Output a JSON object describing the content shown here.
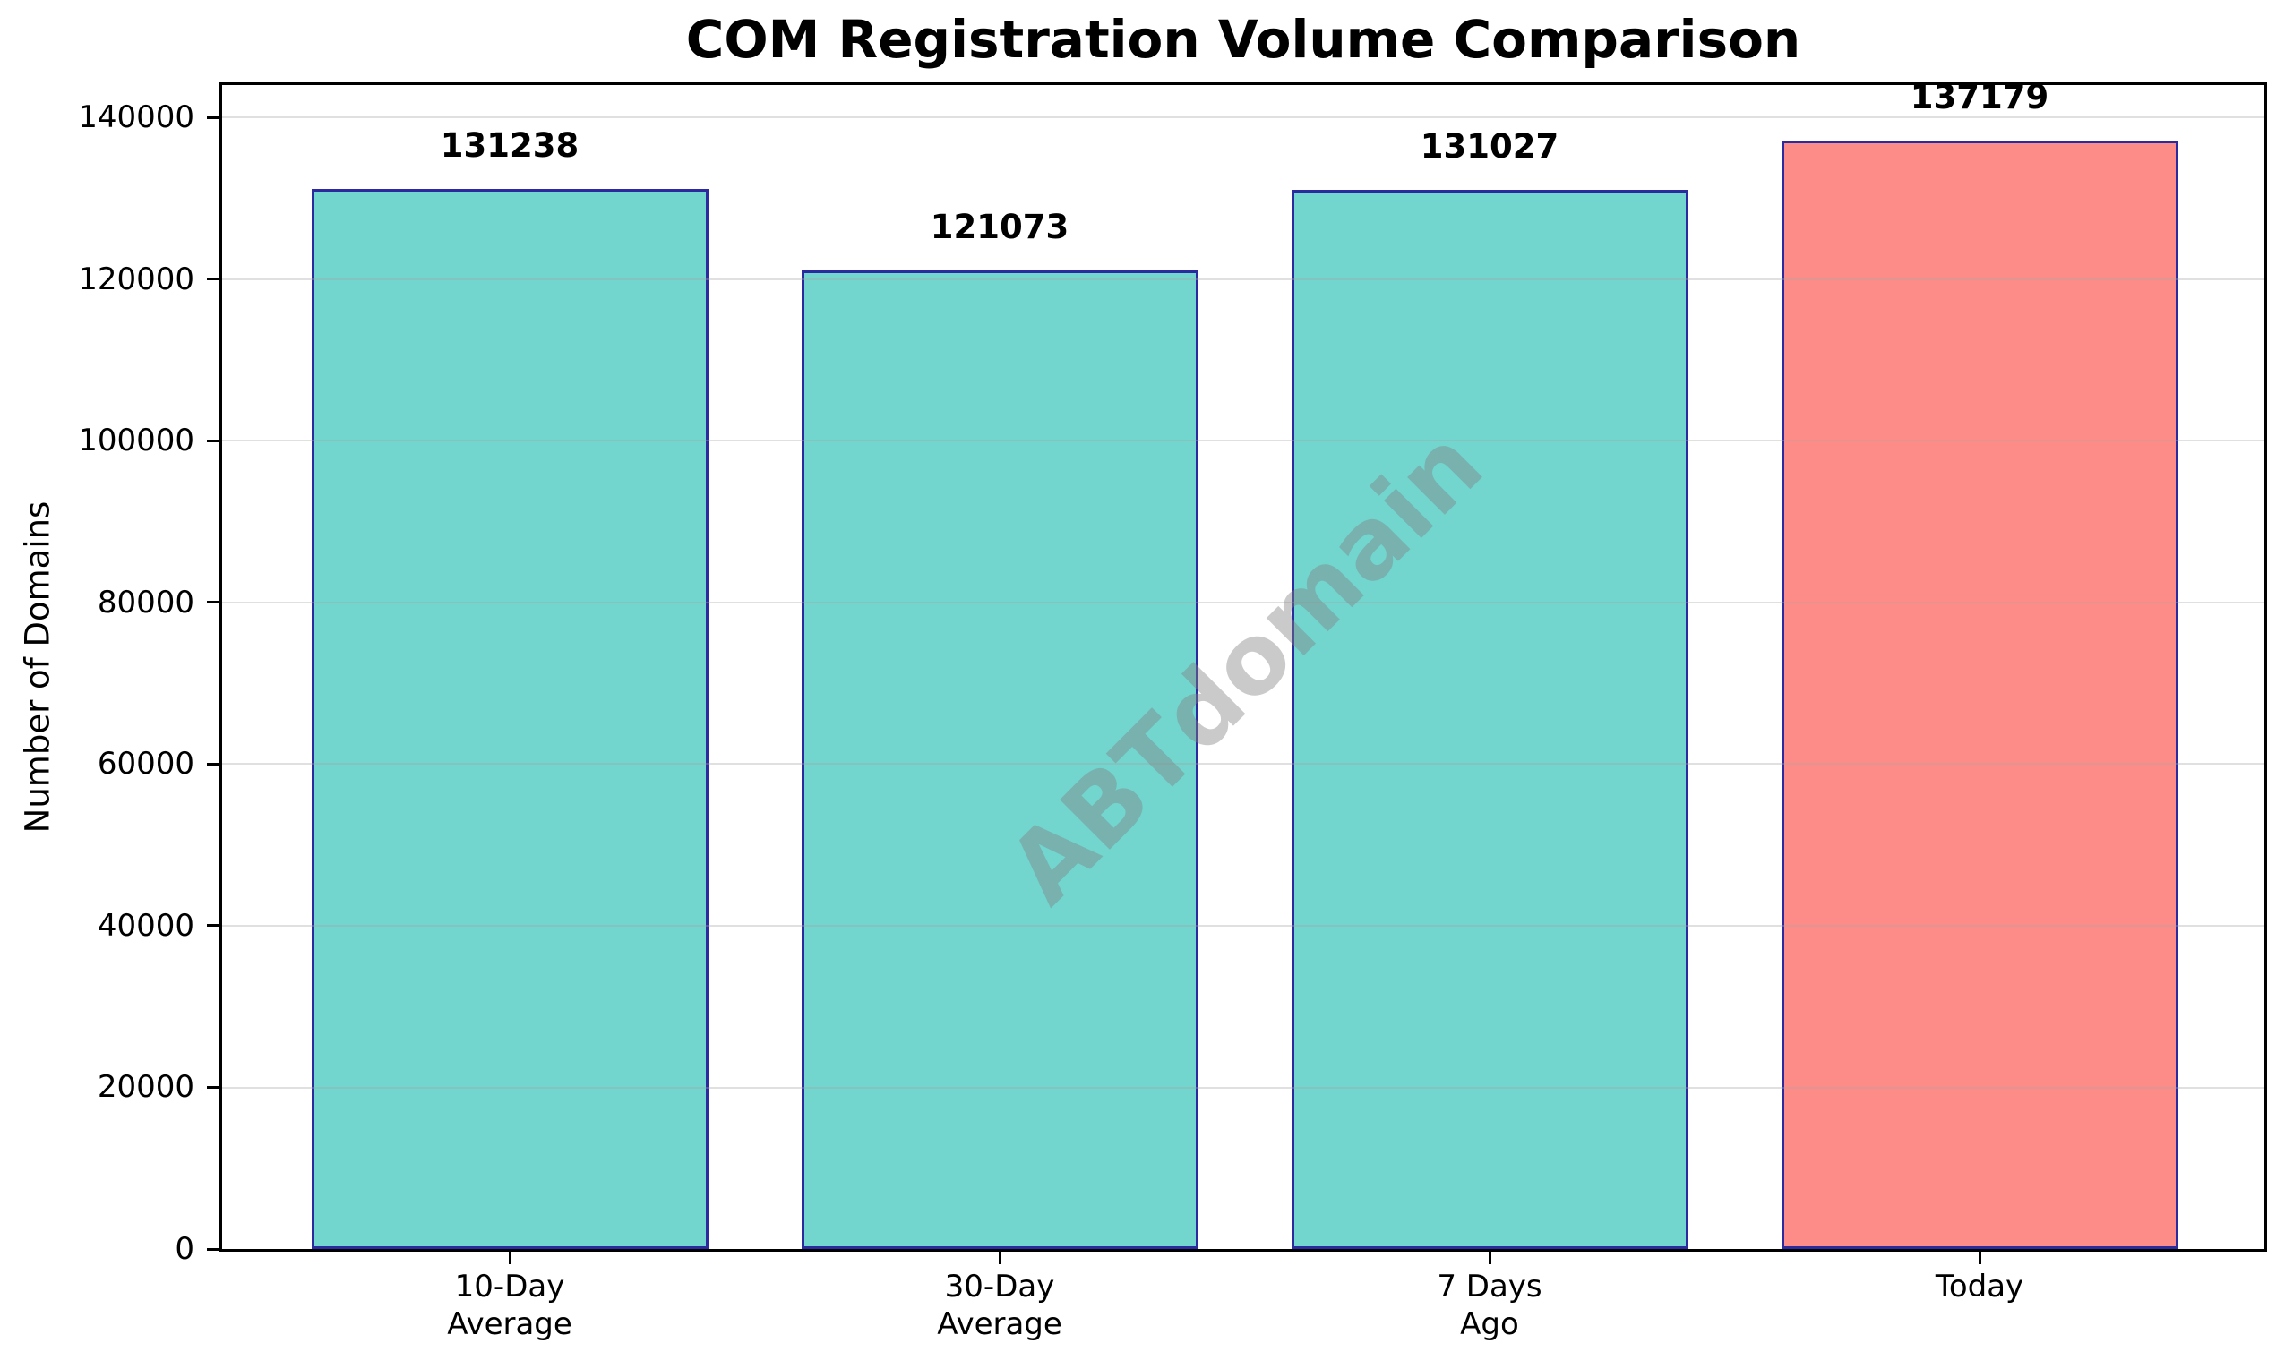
{
  "chart_data": {
    "type": "bar",
    "title": "COM Registration Volume Comparison",
    "ylabel": "Number of Domains",
    "xlabel": "",
    "categories": [
      "10-Day\nAverage",
      "30-Day\nAverage",
      "7 Days\nAgo",
      "Today"
    ],
    "values": [
      131238,
      121073,
      131027,
      137179
    ],
    "bar_labels": [
      "131238",
      "121073",
      "131027",
      "137179"
    ],
    "bar_colors": [
      "#72d5ce",
      "#72d5ce",
      "#72d5ce",
      "#fd8c88"
    ],
    "bar_edge_color": "#2b2a9e",
    "ylim": [
      0,
      144038
    ],
    "yticks": [
      0,
      20000,
      40000,
      60000,
      80000,
      100000,
      120000,
      140000
    ],
    "grid": "horizontal",
    "legend": "none",
    "watermark": "ABTdomain"
  }
}
